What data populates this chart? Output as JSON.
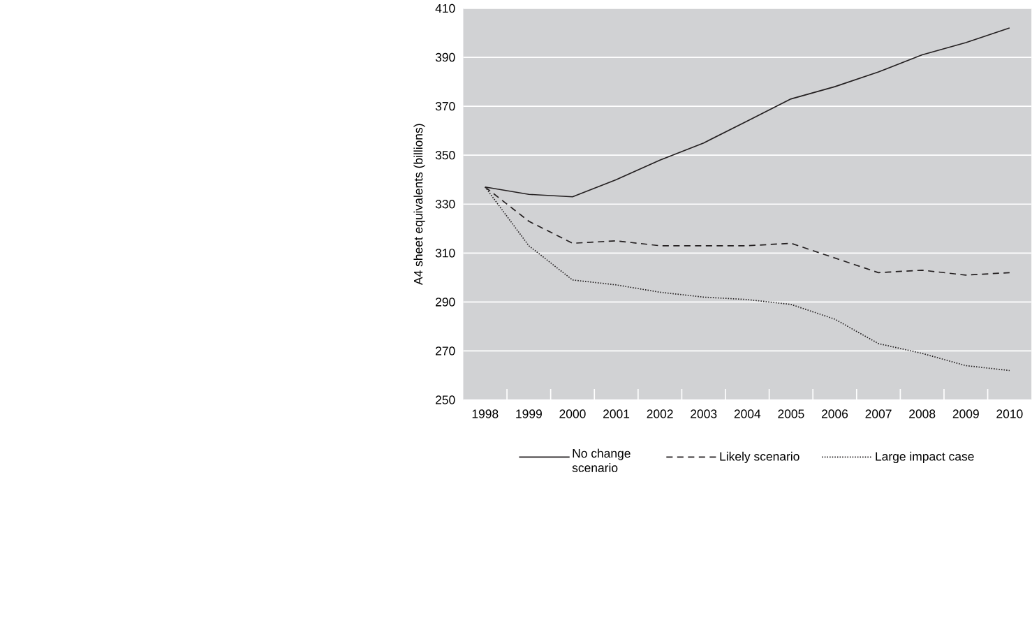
{
  "chart_data": {
    "type": "line",
    "ylabel": "A4 sheet equivalents (billions)",
    "categories": [
      "1998",
      "1999",
      "2000",
      "2001",
      "2002",
      "2003",
      "2004",
      "2005",
      "2006",
      "2007",
      "2008",
      "2009",
      "2010"
    ],
    "ylim": [
      250,
      410
    ],
    "yticks": [
      250,
      270,
      290,
      310,
      330,
      350,
      370,
      390,
      410
    ],
    "grid": "y",
    "legend": "bottom",
    "series": [
      {
        "name": "No change scenario",
        "color": "#231f20",
        "line_style": "solid",
        "values": [
          337,
          334,
          333,
          340,
          348,
          355,
          364,
          373,
          378,
          384,
          391,
          396,
          402
        ]
      },
      {
        "name": "Likely scenario",
        "color": "#231f20",
        "line_style": "dashed",
        "values": [
          337,
          323,
          314,
          315,
          313,
          313,
          313,
          314,
          308,
          302,
          303,
          301,
          302
        ]
      },
      {
        "name": "Large impact case",
        "color": "#231f20",
        "line_style": "dotted",
        "values": [
          337,
          313,
          299,
          297,
          294,
          292,
          291,
          289,
          283,
          273,
          269,
          264,
          262
        ]
      }
    ]
  }
}
